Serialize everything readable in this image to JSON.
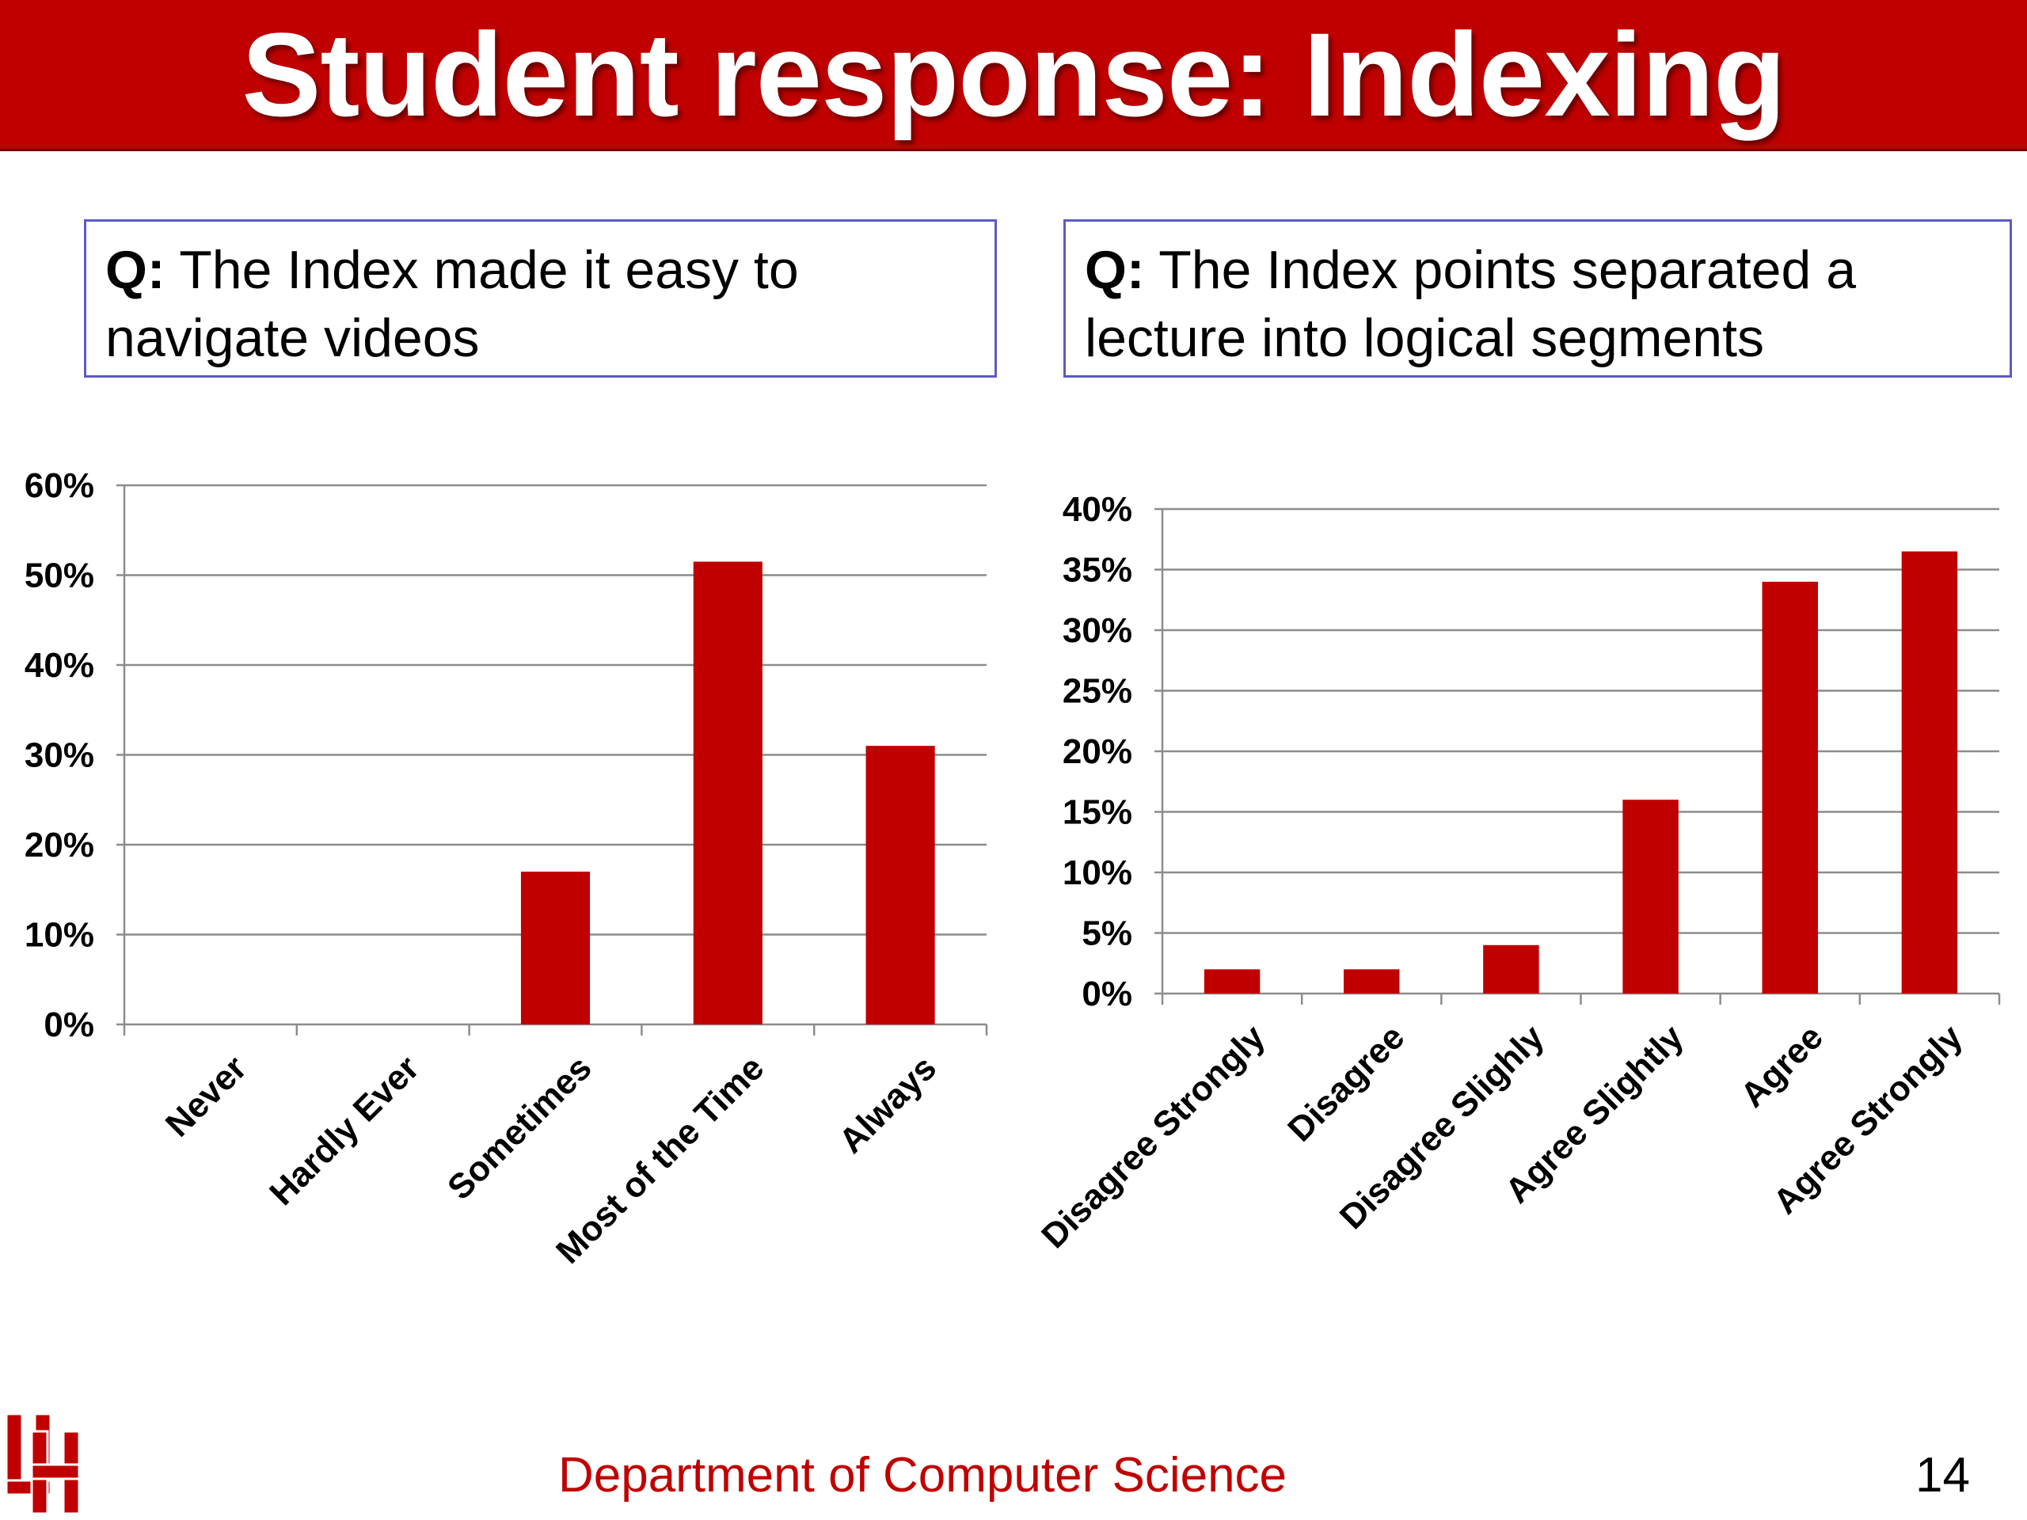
{
  "slide": {
    "title": "Student response: Indexing",
    "footer": "Department of Computer Science",
    "page_number": "14",
    "accent_color": "#c00000"
  },
  "questions": [
    {
      "prefix": "Q:",
      "text": " The Index made it easy to navigate videos"
    },
    {
      "prefix": "Q:",
      "text": " The Index points separated a lecture into logical segments"
    }
  ],
  "chart_data": [
    {
      "type": "bar",
      "categories": [
        "Never",
        "Hardly Ever",
        "Sometimes",
        "Most of the Time",
        "Always"
      ],
      "values": [
        0,
        0,
        17,
        51.5,
        31
      ],
      "ylim": [
        0,
        60
      ],
      "yticks": [
        0,
        10,
        20,
        30,
        40,
        50,
        60
      ],
      "ytick_labels": [
        "0%",
        "10%",
        "20%",
        "30%",
        "40%",
        "50%",
        "60%"
      ],
      "grid": true,
      "bar_color": "#c00000"
    },
    {
      "type": "bar",
      "categories": [
        "Disagree Strongly",
        "Disagree",
        "Disagree Slighly",
        "Agree Slightly",
        "Agree",
        "Agree Strongly"
      ],
      "values": [
        2,
        2,
        4,
        16,
        34,
        36.5
      ],
      "ylim": [
        0,
        40
      ],
      "yticks": [
        0,
        5,
        10,
        15,
        20,
        25,
        30,
        35,
        40
      ],
      "ytick_labels": [
        "0%",
        "5%",
        "10%",
        "15%",
        "20%",
        "25%",
        "30%",
        "35%",
        "40%"
      ],
      "grid": true,
      "bar_color": "#c00000"
    }
  ]
}
